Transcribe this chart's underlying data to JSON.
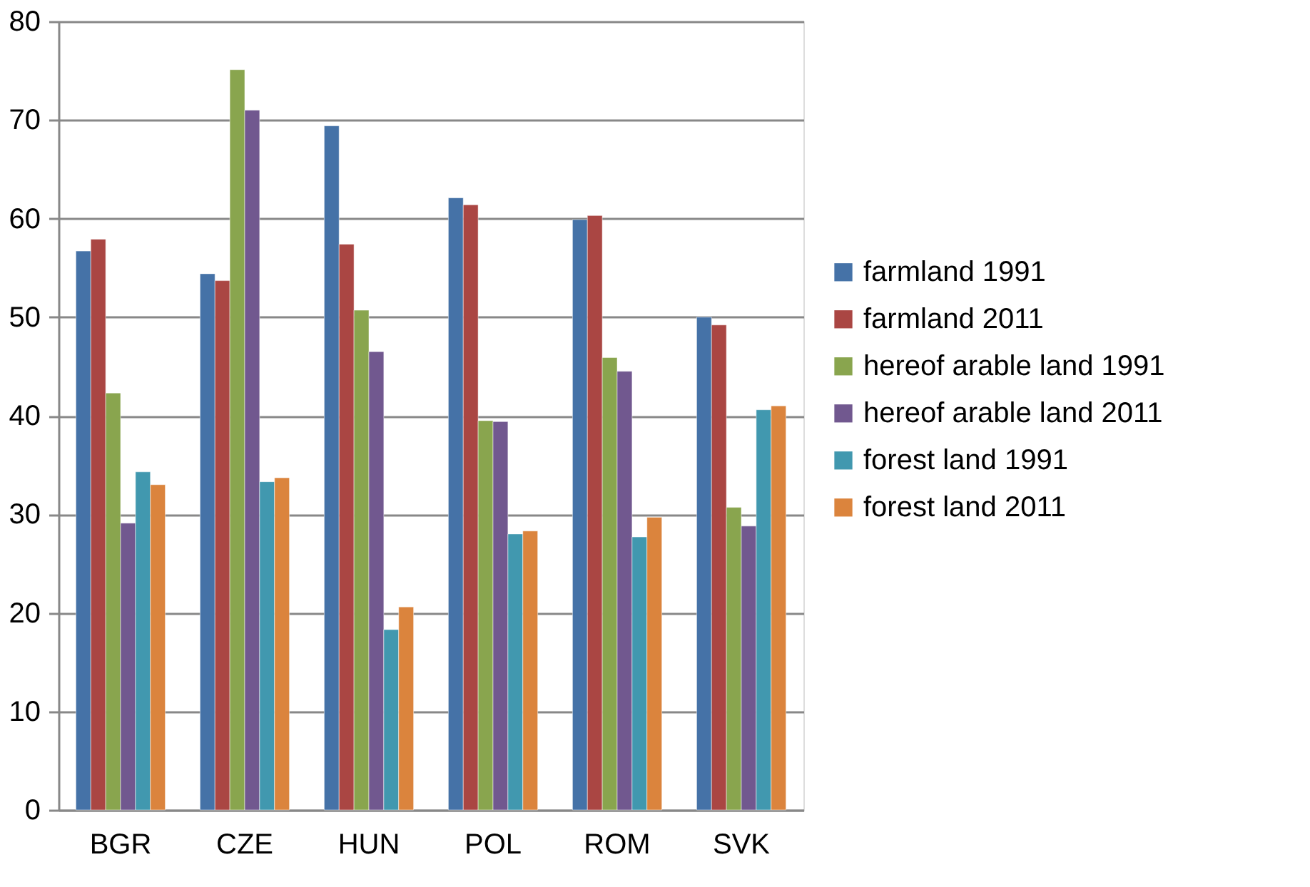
{
  "chart_data": {
    "type": "bar",
    "categories": [
      "BGR",
      "CZE",
      "HUN",
      "POL",
      "ROM",
      "SVK"
    ],
    "series": [
      {
        "name": "farmland 1991",
        "color": "#4572a7",
        "values": [
          56.7,
          54.4,
          69.4,
          62.1,
          59.9,
          50.0
        ]
      },
      {
        "name": "farmland 2011",
        "color": "#aa4643",
        "values": [
          57.9,
          53.7,
          57.4,
          61.4,
          60.3,
          49.2
        ]
      },
      {
        "name": "hereof arable land 1991",
        "color": "#89a54e",
        "values": [
          42.3,
          75.1,
          50.7,
          39.5,
          45.9,
          30.7
        ]
      },
      {
        "name": "hereof arable land 2011",
        "color": "#71588f",
        "values": [
          29.1,
          71.0,
          46.5,
          39.4,
          44.5,
          28.8
        ]
      },
      {
        "name": "forest land 1991",
        "color": "#4198af",
        "values": [
          34.3,
          33.3,
          18.3,
          28.0,
          27.7,
          40.6
        ]
      },
      {
        "name": "forest land 2011",
        "color": "#db843d",
        "values": [
          33.0,
          33.7,
          20.6,
          28.3,
          29.7,
          41.0
        ]
      }
    ],
    "ylim": [
      0,
      80
    ],
    "yticks": [
      0,
      10,
      20,
      30,
      40,
      50,
      60,
      70,
      80
    ],
    "grid": "y",
    "legend": "right"
  }
}
